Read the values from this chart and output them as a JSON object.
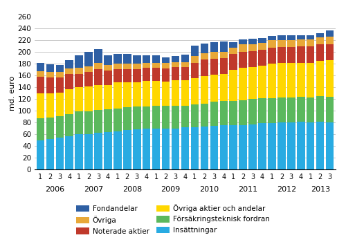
{
  "ylabel": "md. euro",
  "ylim": [
    0,
    260
  ],
  "yticks": [
    0,
    20,
    40,
    60,
    80,
    100,
    120,
    140,
    160,
    180,
    200,
    220,
    240,
    260
  ],
  "colors": {
    "insattningar": "#29ABE2",
    "forsakring": "#5BB85D",
    "ovriga_aktier": "#FFD700",
    "noterade": "#C0392B",
    "ovriga": "#E8A838",
    "fondandelar": "#2E5FA3"
  },
  "quarter_labels": [
    "1",
    "2",
    "3",
    "4",
    "1",
    "2",
    "3",
    "4",
    "1",
    "2",
    "3",
    "4",
    "1",
    "2",
    "3",
    "4",
    "1",
    "2",
    "3",
    "4",
    "1",
    "2",
    "3",
    "4",
    "1",
    "2",
    "3",
    "4",
    "1",
    "2",
    "3"
  ],
  "year_labels": [
    "2006",
    "2007",
    "2008",
    "2009",
    "2010",
    "2011",
    "2012",
    "2013"
  ],
  "year_bar_counts": [
    4,
    4,
    4,
    4,
    4,
    4,
    4,
    3
  ],
  "insattningar": [
    50,
    52,
    54,
    57,
    60,
    60,
    62,
    64,
    65,
    67,
    68,
    70,
    70,
    70,
    70,
    72,
    72,
    73,
    74,
    76,
    75,
    76,
    77,
    79,
    79,
    80,
    80,
    81,
    80,
    81,
    80
  ],
  "forsakring": [
    37,
    37,
    37,
    37,
    39,
    39,
    39,
    38,
    39,
    39,
    39,
    37,
    38,
    38,
    39,
    37,
    39,
    39,
    41,
    41,
    42,
    42,
    43,
    43,
    43,
    43,
    43,
    43,
    43,
    44,
    44
  ],
  "ovriga_aktier": [
    43,
    41,
    40,
    43,
    41,
    42,
    43,
    42,
    45,
    43,
    42,
    44,
    43,
    42,
    43,
    43,
    45,
    47,
    46,
    46,
    53,
    55,
    54,
    55,
    58,
    58,
    58,
    58,
    59,
    60,
    62
  ],
  "noterade": [
    28,
    27,
    26,
    26,
    23,
    25,
    27,
    25,
    22,
    22,
    22,
    22,
    22,
    22,
    22,
    22,
    26,
    28,
    28,
    27,
    27,
    28,
    28,
    27,
    28,
    28,
    28,
    28,
    28,
    28,
    28
  ],
  "ovriga": [
    9,
    9,
    9,
    9,
    10,
    10,
    10,
    9,
    9,
    9,
    9,
    9,
    9,
    9,
    9,
    9,
    11,
    11,
    11,
    11,
    11,
    12,
    12,
    12,
    12,
    12,
    12,
    12,
    12,
    12,
    12
  ],
  "fondandelar": [
    14,
    13,
    12,
    14,
    22,
    24,
    24,
    17,
    17,
    17,
    15,
    13,
    13,
    10,
    10,
    13,
    18,
    17,
    17,
    17,
    9,
    9,
    9,
    8,
    8,
    8,
    8,
    7,
    7,
    7,
    11
  ]
}
